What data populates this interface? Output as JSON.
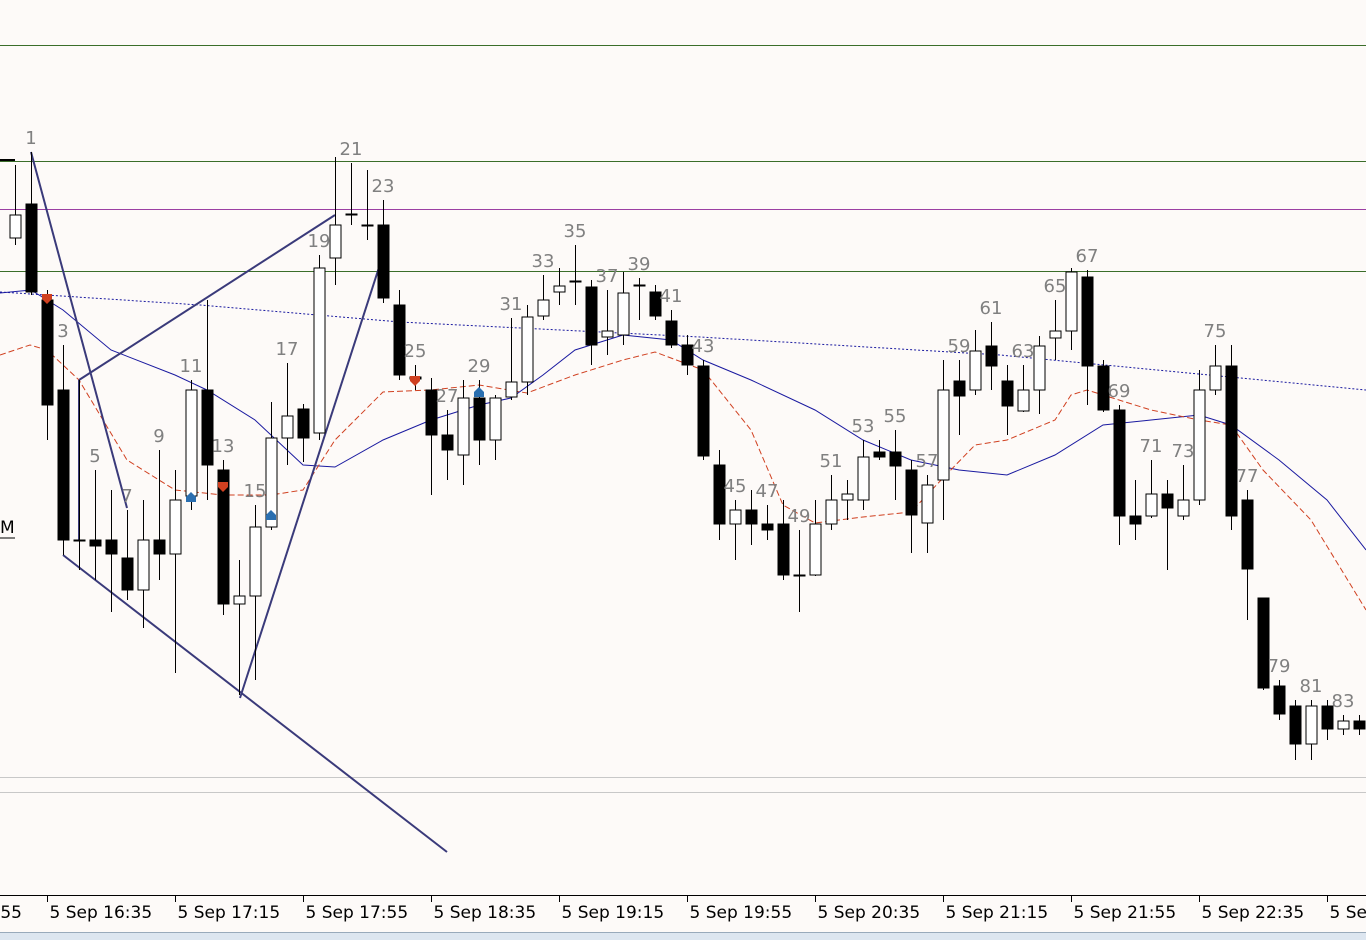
{
  "chart_data": {
    "type": "candlestick",
    "categories": [
      null,
      "1",
      null,
      "3",
      null,
      "5",
      null,
      "7",
      null,
      "9",
      null,
      "11",
      null,
      "13",
      null,
      "15",
      null,
      "17",
      null,
      "19",
      null,
      "21",
      null,
      "23",
      null,
      "25",
      null,
      "27",
      null,
      "29",
      null,
      "31",
      null,
      "33",
      null,
      "35",
      null,
      "37",
      null,
      "39",
      null,
      "41",
      null,
      "43",
      null,
      "45",
      null,
      "47",
      null,
      "49",
      null,
      "51",
      null,
      "53",
      null,
      "55",
      null,
      "57",
      null,
      "59",
      null,
      "61",
      null,
      "63",
      null,
      "65",
      null,
      "67",
      null,
      "69",
      null,
      "71",
      null,
      "73",
      null,
      "75",
      null,
      "77",
      null,
      "79",
      null,
      "81",
      null,
      "83",
      null
    ],
    "open": [
      702,
      736,
      640,
      550,
      400,
      400,
      400,
      382,
      350,
      400,
      386,
      444,
      550,
      470,
      336,
      344,
      413,
      502,
      531,
      507,
      682,
      726,
      715,
      715,
      635,
      563,
      550,
      505,
      485,
      542,
      500,
      543,
      558,
      624,
      648,
      659,
      653,
      603,
      605,
      655,
      648,
      619,
      595,
      574,
      475,
      416,
      430,
      416,
      416,
      365,
      365,
      416,
      440,
      440,
      488,
      488,
      470,
      417,
      460,
      559,
      550,
      594,
      559,
      529,
      550,
      602,
      609,
      663,
      574,
      530,
      424,
      424,
      446,
      424,
      440,
      550,
      574,
      440,
      342,
      254,
      234,
      196,
      234,
      211,
      219
    ],
    "high": [
      775,
      788,
      650,
      595,
      560,
      470,
      450,
      430,
      440,
      490,
      470,
      560,
      640,
      480,
      380,
      435,
      538,
      577,
      536,
      685,
      783,
      777,
      770,
      740,
      650,
      575,
      562,
      530,
      560,
      560,
      545,
      622,
      635,
      665,
      672,
      695,
      660,
      650,
      668,
      662,
      655,
      630,
      605,
      580,
      490,
      440,
      450,
      435,
      440,
      410,
      440,
      465,
      460,
      500,
      500,
      510,
      480,
      465,
      580,
      580,
      610,
      618,
      575,
      575,
      604,
      640,
      672,
      670,
      580,
      535,
      460,
      480,
      460,
      475,
      570,
      595,
      595,
      450,
      342,
      260,
      240,
      240,
      240,
      225,
      225
    ],
    "low": [
      695,
      645,
      500,
      385,
      370,
      360,
      328,
      340,
      312,
      360,
      267,
      430,
      440,
      325,
      245,
      260,
      410,
      475,
      478,
      500,
      655,
      715,
      700,
      637,
      560,
      550,
      445,
      460,
      455,
      475,
      480,
      540,
      545,
      620,
      635,
      635,
      575,
      585,
      595,
      620,
      620,
      592,
      565,
      480,
      400,
      380,
      395,
      400,
      360,
      328,
      364,
      410,
      420,
      430,
      480,
      440,
      387,
      387,
      420,
      505,
      545,
      550,
      505,
      528,
      526,
      580,
      590,
      535,
      528,
      395,
      400,
      422,
      370,
      420,
      435,
      545,
      410,
      320,
      250,
      220,
      180,
      180,
      200,
      205,
      205
    ],
    "close": [
      725,
      648,
      535,
      400,
      399,
      394,
      386,
      350,
      400,
      386,
      440,
      550,
      475,
      336,
      344,
      413,
      502,
      524,
      502,
      672,
      715,
      725,
      714,
      642,
      565,
      561,
      505,
      490,
      542,
      500,
      542,
      558,
      623,
      640,
      654,
      658,
      595,
      609,
      647,
      654,
      624,
      595,
      575,
      484,
      416,
      430,
      416,
      410,
      365,
      364,
      416,
      440,
      446,
      483,
      483,
      474,
      425,
      455,
      550,
      544,
      589,
      574,
      534,
      550,
      594,
      609,
      668,
      574,
      530,
      424,
      416,
      446,
      432,
      440,
      550,
      574,
      424,
      371,
      252,
      226,
      196,
      234,
      211,
      219,
      211
    ],
    "ylim": [
      45,
      940
    ],
    "x_labels": [
      "55",
      "5 Sep 16:35",
      "5 Sep 17:15",
      "5 Sep 17:55",
      "5 Sep 18:35",
      "5 Sep 19:15",
      "5 Sep 19:55",
      "5 Sep 20:35",
      "5 Sep 21:15",
      "5 Sep 21:55",
      "5 Sep 22:35",
      "5 Sep"
    ],
    "side_label": "M"
  }
}
